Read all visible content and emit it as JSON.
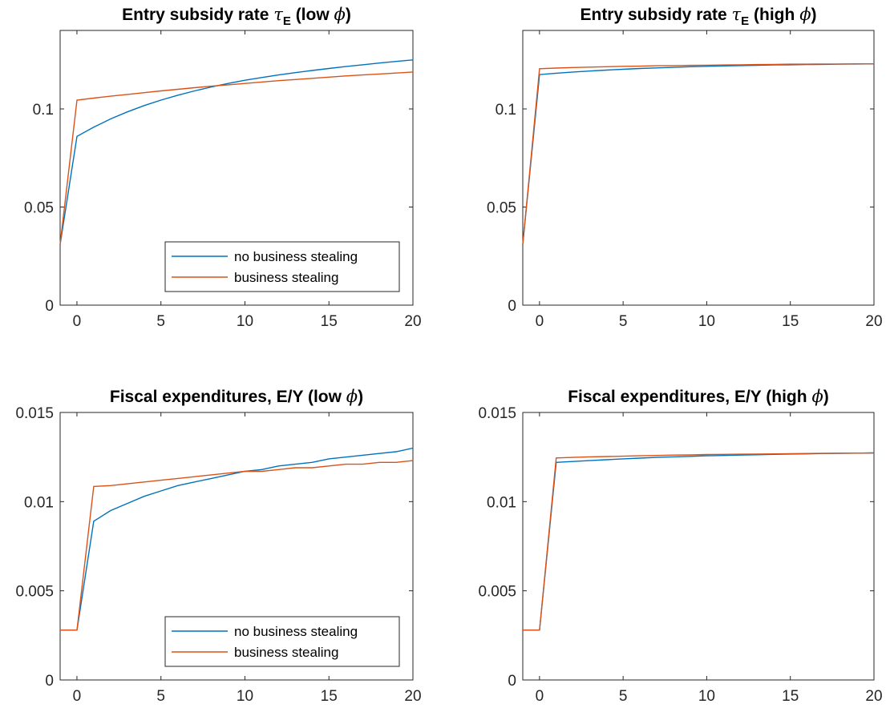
{
  "colors": {
    "blue": "#0072BD",
    "orange": "#D95319",
    "axis": "#262626"
  },
  "legend": {
    "entries": [
      {
        "label": "no business stealing",
        "color": "#0072BD"
      },
      {
        "label": "business stealing",
        "color": "#D95319"
      }
    ]
  },
  "chart_data": [
    {
      "type": "line",
      "title": "Entry subsidy rate",
      "title_symbol": "τ",
      "title_subscript": "E",
      "title_suffix_open": "(low ",
      "title_suffix_phi": "ϕ",
      "title_suffix_close": ")",
      "xlabel": "",
      "ylabel": "",
      "xlim": [
        -1,
        20
      ],
      "ylim": [
        0,
        0.14
      ],
      "xticks": [
        0,
        5,
        10,
        15,
        20
      ],
      "xticklabels": [
        "0",
        "5",
        "10",
        "15",
        "20"
      ],
      "yticks": [
        0,
        0.05,
        0.1
      ],
      "yticklabels": [
        "0",
        "0.05",
        "0.1"
      ],
      "legend": true,
      "legend_location": "bottom-right",
      "series": [
        {
          "name": "no business stealing",
          "color": "#0072BD",
          "x": [
            -1,
            0,
            1,
            2,
            3,
            4,
            5,
            6,
            7,
            8,
            9,
            10,
            11,
            12,
            13,
            14,
            15,
            16,
            17,
            18,
            19,
            20
          ],
          "y": [
            0.031,
            0.086,
            0.0907,
            0.0949,
            0.0985,
            0.1017,
            0.1045,
            0.107,
            0.1092,
            0.1112,
            0.113,
            0.1146,
            0.116,
            0.1173,
            0.1185,
            0.1196,
            0.1206,
            0.1216,
            0.1225,
            0.1234,
            0.1242,
            0.125
          ]
        },
        {
          "name": "business stealing",
          "color": "#D95319",
          "x": [
            -1,
            0,
            1,
            2,
            3,
            4,
            5,
            6,
            7,
            8,
            9,
            10,
            11,
            12,
            13,
            14,
            15,
            16,
            17,
            18,
            19,
            20
          ],
          "y": [
            0.031,
            0.1045,
            0.1055,
            0.1065,
            0.1074,
            0.1083,
            0.1092,
            0.11,
            0.1108,
            0.1116,
            0.1123,
            0.113,
            0.1137,
            0.1144,
            0.115,
            0.1156,
            0.1162,
            0.1168,
            0.1173,
            0.1178,
            0.1183,
            0.1188
          ]
        }
      ]
    },
    {
      "type": "line",
      "title": "Entry subsidy rate",
      "title_symbol": "τ",
      "title_subscript": "E",
      "title_suffix_open": "(high ",
      "title_suffix_phi": "ϕ",
      "title_suffix_close": ")",
      "xlabel": "",
      "ylabel": "",
      "xlim": [
        -1,
        20
      ],
      "ylim": [
        0,
        0.14
      ],
      "xticks": [
        0,
        5,
        10,
        15,
        20
      ],
      "xticklabels": [
        "0",
        "5",
        "10",
        "15",
        "20"
      ],
      "yticks": [
        0,
        0.05,
        0.1
      ],
      "yticklabels": [
        "0",
        "0.05",
        "0.1"
      ],
      "legend": false,
      "series": [
        {
          "name": "no business stealing",
          "color": "#0072BD",
          "x": [
            -1,
            0,
            1,
            2,
            3,
            4,
            5,
            6,
            7,
            8,
            9,
            10,
            11,
            12,
            13,
            14,
            15,
            16,
            17,
            18,
            19,
            20
          ],
          "y": [
            0.031,
            0.1175,
            0.1182,
            0.1188,
            0.1193,
            0.1198,
            0.1202,
            0.1206,
            0.1209,
            0.1212,
            0.1215,
            0.1217,
            0.1219,
            0.1221,
            0.1222,
            0.1224,
            0.1225,
            0.1226,
            0.1227,
            0.1228,
            0.1229,
            0.123
          ]
        },
        {
          "name": "business stealing",
          "color": "#D95319",
          "x": [
            -1,
            0,
            1,
            2,
            3,
            4,
            5,
            6,
            7,
            8,
            9,
            10,
            11,
            12,
            13,
            14,
            15,
            16,
            17,
            18,
            19,
            20
          ],
          "y": [
            0.031,
            0.1205,
            0.1208,
            0.1211,
            0.1213,
            0.1215,
            0.1217,
            0.1218,
            0.122,
            0.1221,
            0.1222,
            0.1223,
            0.1224,
            0.1225,
            0.1226,
            0.1227,
            0.1228,
            0.1228,
            0.1229,
            0.1229,
            0.123,
            0.123
          ]
        }
      ]
    },
    {
      "type": "line",
      "title": "Fiscal expenditures, E/Y",
      "title_symbol": "",
      "title_subscript": "",
      "title_suffix_open": "(low ",
      "title_suffix_phi": "ϕ",
      "title_suffix_close": ")",
      "xlabel": "",
      "ylabel": "",
      "xlim": [
        -1,
        20
      ],
      "ylim": [
        0,
        0.015
      ],
      "xticks": [
        0,
        5,
        10,
        15,
        20
      ],
      "xticklabels": [
        "0",
        "5",
        "10",
        "15",
        "20"
      ],
      "yticks": [
        0,
        0.005,
        0.01,
        0.015
      ],
      "yticklabels": [
        "0",
        "0.005",
        "0.01",
        "0.015"
      ],
      "legend": true,
      "legend_location": "bottom-right",
      "series": [
        {
          "name": "no business stealing",
          "color": "#0072BD",
          "x": [
            -1,
            0,
            1,
            2,
            3,
            4,
            5,
            6,
            7,
            8,
            9,
            10,
            11,
            12,
            13,
            14,
            15,
            16,
            17,
            18,
            19,
            20
          ],
          "y": [
            0.0028,
            0.0028,
            0.0089,
            0.0095,
            0.0099,
            0.0103,
            0.0106,
            0.0109,
            0.0111,
            0.0113,
            0.0115,
            0.0117,
            0.0118,
            0.012,
            0.0121,
            0.0122,
            0.0124,
            0.0125,
            0.0126,
            0.0127,
            0.0128,
            0.013
          ]
        },
        {
          "name": "business stealing",
          "color": "#D95319",
          "x": [
            -1,
            0,
            1,
            2,
            3,
            4,
            5,
            6,
            7,
            8,
            9,
            10,
            11,
            12,
            13,
            14,
            15,
            16,
            17,
            18,
            19,
            20
          ],
          "y": [
            0.0028,
            0.0028,
            0.01085,
            0.0109,
            0.011,
            0.0111,
            0.0112,
            0.0113,
            0.0114,
            0.0115,
            0.0116,
            0.0117,
            0.0117,
            0.0118,
            0.0119,
            0.0119,
            0.012,
            0.0121,
            0.0121,
            0.0122,
            0.0122,
            0.0123
          ]
        }
      ]
    },
    {
      "type": "line",
      "title": "Fiscal expenditures, E/Y",
      "title_symbol": "",
      "title_subscript": "",
      "title_suffix_open": "(high ",
      "title_suffix_phi": "ϕ",
      "title_suffix_close": ")",
      "xlabel": "",
      "ylabel": "",
      "xlim": [
        -1,
        20
      ],
      "ylim": [
        0,
        0.015
      ],
      "xticks": [
        0,
        5,
        10,
        15,
        20
      ],
      "xticklabels": [
        "0",
        "5",
        "10",
        "15",
        "20"
      ],
      "yticks": [
        0,
        0.005,
        0.01,
        0.015
      ],
      "yticklabels": [
        "0",
        "0.005",
        "0.01",
        "0.015"
      ],
      "legend": false,
      "series": [
        {
          "name": "no business stealing",
          "color": "#0072BD",
          "x": [
            -1,
            0,
            1,
            2,
            3,
            4,
            5,
            6,
            7,
            8,
            9,
            10,
            11,
            12,
            13,
            14,
            15,
            16,
            17,
            18,
            19,
            20
          ],
          "y": [
            0.0028,
            0.0028,
            0.0122,
            0.01225,
            0.0123,
            0.01235,
            0.0124,
            0.01244,
            0.01248,
            0.01251,
            0.01254,
            0.01257,
            0.01259,
            0.01261,
            0.01263,
            0.01265,
            0.01267,
            0.01268,
            0.0127,
            0.01271,
            0.01272,
            0.01273
          ]
        },
        {
          "name": "business stealing",
          "color": "#D95319",
          "x": [
            -1,
            0,
            1,
            2,
            3,
            4,
            5,
            6,
            7,
            8,
            9,
            10,
            11,
            12,
            13,
            14,
            15,
            16,
            17,
            18,
            19,
            20
          ],
          "y": [
            0.0028,
            0.0028,
            0.01245,
            0.01248,
            0.01251,
            0.01253,
            0.01255,
            0.01257,
            0.01259,
            0.01261,
            0.01262,
            0.01264,
            0.01265,
            0.01266,
            0.01267,
            0.01268,
            0.01269,
            0.0127,
            0.01271,
            0.01272,
            0.01272,
            0.01273
          ]
        }
      ]
    }
  ]
}
